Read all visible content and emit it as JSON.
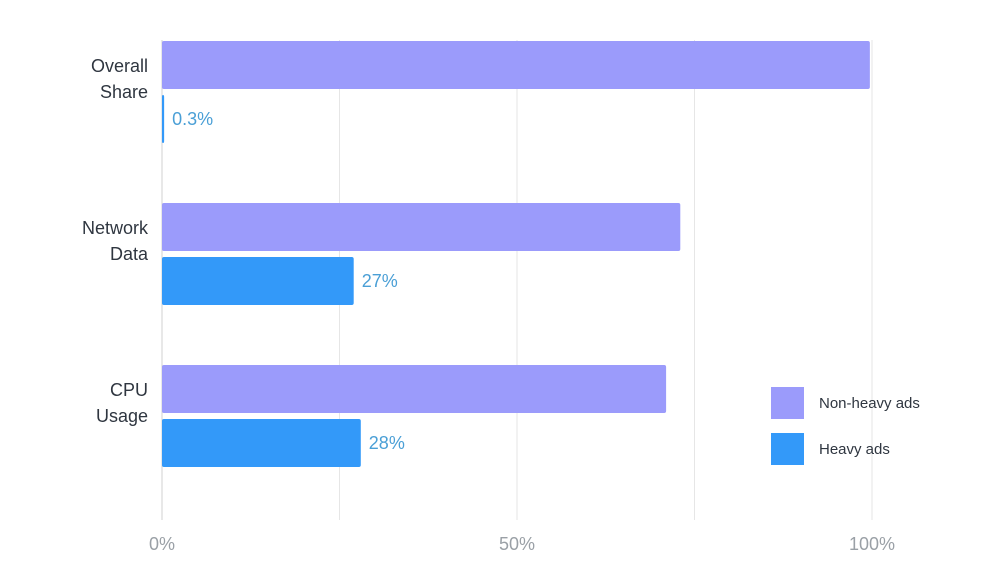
{
  "chart_data": {
    "type": "bar",
    "orientation": "horizontal",
    "categories": [
      [
        "Overall",
        "Share"
      ],
      [
        "Network",
        "Data"
      ],
      [
        "CPU",
        "Usage"
      ]
    ],
    "series": [
      {
        "name": "Non-heavy ads",
        "values": [
          99.7,
          73,
          71
        ],
        "color": "#9b9bfb"
      },
      {
        "name": "Heavy ads",
        "values": [
          0.3,
          27,
          28
        ],
        "color": "#3399f9",
        "labels": [
          "0.3%",
          "27%",
          "28%"
        ],
        "label_color": "#4a9fd6"
      }
    ],
    "xlim": [
      0,
      100
    ],
    "xticks": [
      0,
      25,
      50,
      75,
      100
    ],
    "xtick_labels": [
      "0%",
      "",
      "50%",
      "",
      "100%"
    ],
    "grid": true,
    "legend_position": "bottom-right"
  }
}
